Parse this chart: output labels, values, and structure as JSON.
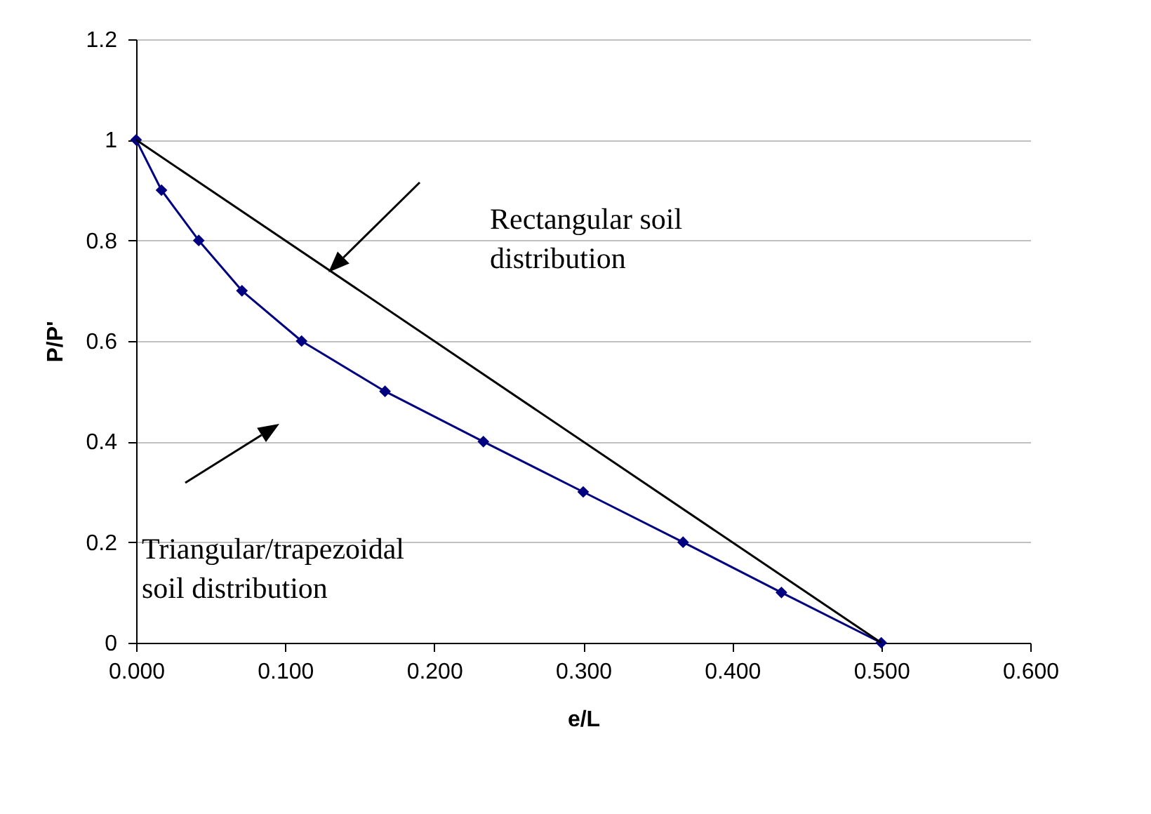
{
  "chart_data": {
    "type": "line",
    "xlabel": "e/L",
    "ylabel": "P/P'",
    "series": [
      {
        "color": "#000080",
        "marker": "diamond",
        "x": [
          0,
          0.017,
          0.042,
          0.071,
          0.111,
          0.167,
          0.233,
          0.3,
          0.367,
          0.433,
          0.5
        ],
        "values": [
          1,
          0.9,
          0.8,
          0.7,
          0.6,
          0.5,
          0.4,
          0.3,
          0.2,
          0.1,
          0
        ]
      },
      {
        "color": "#000000",
        "marker": "none",
        "x": [
          0,
          0.5
        ],
        "values": [
          1,
          0
        ]
      }
    ],
    "xlim": [
      0,
      0.6
    ],
    "xticks": [
      {
        "value": 0,
        "label": "0.000"
      },
      {
        "value": 0.1,
        "label": "0.100"
      },
      {
        "value": 0.2,
        "label": "0.200"
      },
      {
        "value": 0.3,
        "label": "0.300"
      },
      {
        "value": 0.4,
        "label": "0.400"
      },
      {
        "value": 0.5,
        "label": "0.500"
      },
      {
        "value": 0.6,
        "label": "0.600"
      }
    ],
    "ylim": [
      0,
      1.2
    ],
    "yticks": [
      0,
      0.2,
      0.4,
      0.6,
      0.8,
      1,
      1.2
    ],
    "grid": "y",
    "annotations": [
      "Rectangular soil\ndistribution",
      "Triangular/trapezoidal\nsoil distribution"
    ]
  }
}
